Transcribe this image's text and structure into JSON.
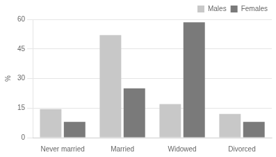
{
  "chart_data": {
    "type": "bar",
    "categories": [
      "Never married",
      "Married",
      "Widowed",
      "Divorced"
    ],
    "series": [
      {
        "name": "Males",
        "color": "#c8c8c8",
        "values": [
          14.5,
          52.0,
          17.0,
          12.0
        ]
      },
      {
        "name": "Females",
        "color": "#7a7a7a",
        "values": [
          8.0,
          25.0,
          58.5,
          8.0
        ]
      }
    ],
    "ylabel": "%",
    "ylim": [
      0,
      60
    ],
    "yticks": [
      0,
      15,
      30,
      45,
      60
    ],
    "grid": true,
    "legend": "upper right"
  }
}
